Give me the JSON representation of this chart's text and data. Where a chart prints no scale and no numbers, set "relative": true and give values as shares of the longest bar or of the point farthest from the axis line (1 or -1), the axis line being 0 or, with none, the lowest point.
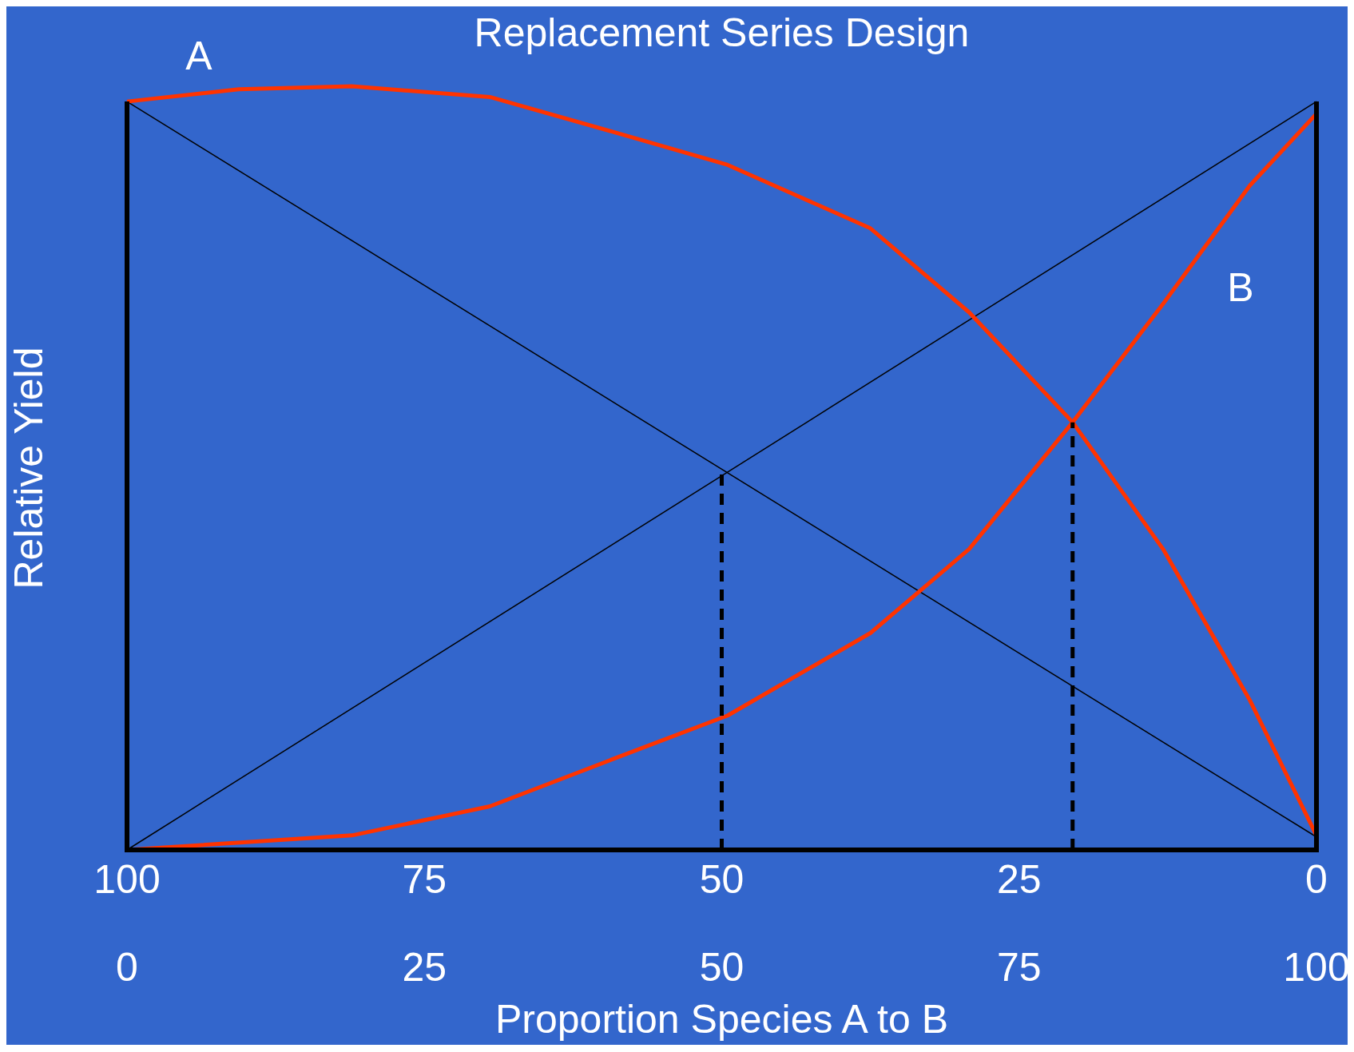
{
  "chart_data": {
    "type": "line",
    "title": "Replacement Series Design",
    "xlabel": "Proportion Species A to B",
    "ylabel": "Relative Yield",
    "relative": true,
    "xlim": [
      100,
      0
    ],
    "xticks": [
      100,
      75,
      50,
      25,
      0
    ],
    "x2lim": [
      0,
      100
    ],
    "x2ticks": [
      0,
      25,
      50,
      75,
      100
    ],
    "series": [
      {
        "color": "#000000",
        "line_style": "solid",
        "x": [
          100,
          0
        ],
        "values": [
          0.98,
          0.017
        ]
      },
      {
        "color": "#000000",
        "line_style": "solid",
        "x": [
          100,
          0
        ],
        "values": [
          0,
          0.98
        ]
      },
      {
        "name": "A",
        "color": "#ff3300",
        "line_style": "solid",
        "x": [
          100,
          90.6,
          81.1,
          69.5,
          59.3,
          49.5,
          37.5,
          29.2,
          20.5,
          12.9,
          5.6,
          0
        ],
        "values": [
          0.98,
          0.996,
          1,
          0.986,
          0.941,
          0.897,
          0.814,
          0.704,
          0.56,
          0.394,
          0.196,
          0.019
        ]
      },
      {
        "name": "B",
        "color": "#ff3300",
        "line_style": "solid",
        "x": [
          100,
          81.1,
          69.5,
          59.3,
          49.5,
          37.5,
          29.2,
          20.5,
          12.9,
          5.6,
          0
        ],
        "values": [
          0,
          0.019,
          0.057,
          0.118,
          0.176,
          0.284,
          0.394,
          0.56,
          0.715,
          0.87,
          0.964
        ]
      },
      {
        "color": "#000000",
        "line_style": "dashed",
        "x": [
          50,
          50
        ],
        "values": [
          0,
          0.494
        ]
      },
      {
        "color": "#000000",
        "line_style": "dashed",
        "x": [
          20.5,
          20.5
        ],
        "values": [
          0,
          0.56
        ]
      }
    ]
  }
}
